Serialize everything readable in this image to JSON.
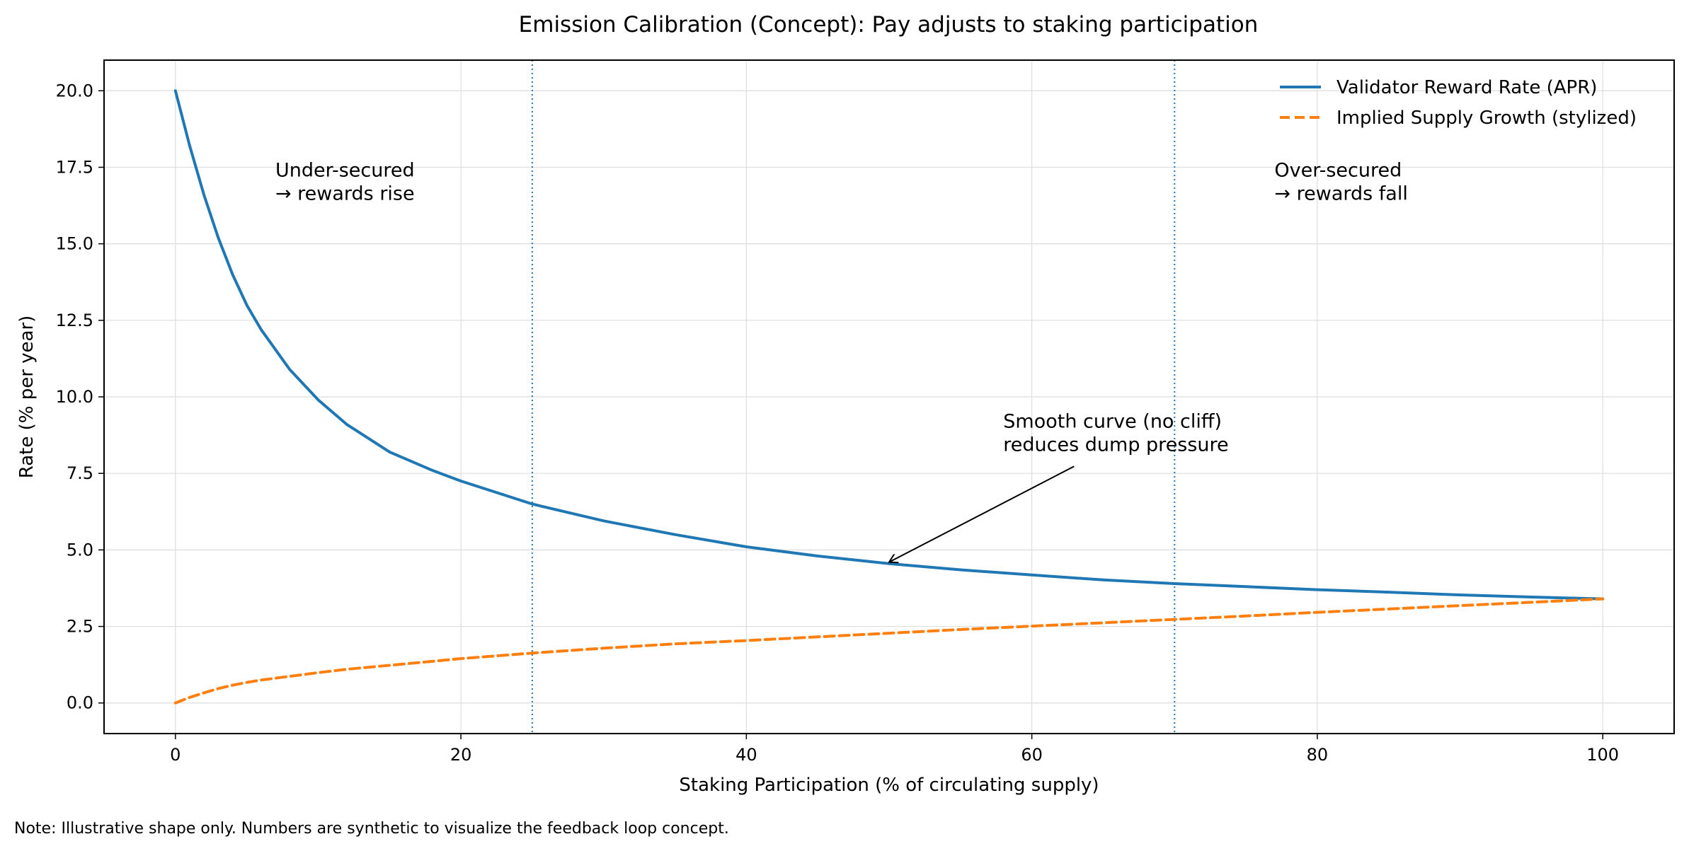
{
  "chart_data": {
    "type": "line",
    "title": "Emission Calibration (Concept): Pay adjusts to staking participation",
    "xlabel": "Staking Participation (% of circulating supply)",
    "ylabel": "Rate (% per year)",
    "xlim": [
      -5,
      105
    ],
    "ylim": [
      -1,
      21
    ],
    "xticks": [
      0,
      20,
      40,
      60,
      80,
      100
    ],
    "yticks": [
      0.0,
      2.5,
      5.0,
      7.5,
      10.0,
      12.5,
      15.0,
      17.5,
      20.0
    ],
    "xtick_labels": [
      "0",
      "20",
      "40",
      "60",
      "80",
      "100"
    ],
    "ytick_labels": [
      "0.0",
      "2.5",
      "5.0",
      "7.5",
      "10.0",
      "12.5",
      "15.0",
      "17.5",
      "20.0"
    ],
    "grid": true,
    "legend_position": "top-right",
    "colors": {
      "reward": "#1f77b4",
      "supply": "#ff7f0e",
      "vline": "#1f77b4"
    },
    "series": [
      {
        "name": "Validator Reward Rate (APR)",
        "style": "solid",
        "x": [
          0,
          1,
          2,
          3,
          4,
          5,
          6,
          8,
          10,
          12,
          15,
          18,
          20,
          25,
          30,
          35,
          40,
          45,
          50,
          55,
          60,
          65,
          70,
          75,
          80,
          85,
          90,
          95,
          100
        ],
        "values": [
          20.0,
          18.2,
          16.6,
          15.2,
          14.0,
          13.0,
          12.2,
          10.9,
          9.9,
          9.1,
          8.2,
          7.6,
          7.25,
          6.5,
          5.95,
          5.5,
          5.1,
          4.8,
          4.55,
          4.35,
          4.18,
          4.02,
          3.9,
          3.8,
          3.7,
          3.62,
          3.53,
          3.46,
          3.4
        ]
      },
      {
        "name": "Implied Supply Growth (stylized)",
        "style": "dashed",
        "x": [
          0,
          1,
          2,
          3,
          4,
          5,
          6,
          8,
          10,
          12,
          15,
          18,
          20,
          25,
          30,
          35,
          40,
          45,
          50,
          55,
          60,
          65,
          70,
          75,
          80,
          85,
          90,
          95,
          100
        ],
        "values": [
          0.0,
          0.18,
          0.33,
          0.47,
          0.58,
          0.67,
          0.75,
          0.87,
          0.99,
          1.1,
          1.23,
          1.36,
          1.45,
          1.63,
          1.79,
          1.93,
          2.04,
          2.16,
          2.28,
          2.4,
          2.51,
          2.62,
          2.73,
          2.84,
          2.96,
          3.07,
          3.18,
          3.29,
          3.4
        ]
      }
    ],
    "vlines": [
      25,
      70
    ],
    "annotations": [
      {
        "lines": [
          "Under-secured",
          "→ rewards rise"
        ],
        "x": 7,
        "y": 17.2
      },
      {
        "lines": [
          "Over-secured",
          "→ rewards fall"
        ],
        "x": 77,
        "y": 17.2
      },
      {
        "lines": [
          "Smooth curve (no cliff)",
          "reduces dump pressure"
        ],
        "x": 58,
        "y": 9.0,
        "arrow_to": [
          50,
          4.6
        ]
      }
    ]
  },
  "footer": {
    "note": "Note: Illustrative shape only. Numbers are synthetic to visualize the feedback loop concept."
  }
}
